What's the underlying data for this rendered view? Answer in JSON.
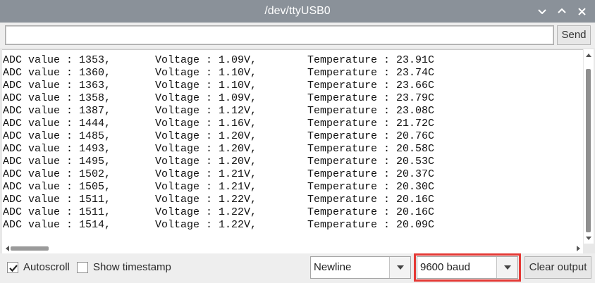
{
  "window": {
    "title": "/dev/ttyUSB0"
  },
  "send_bar": {
    "input_value": "",
    "send_label": "Send"
  },
  "output": {
    "lines": [
      [
        "ADC value : 1353,",
        "Voltage : 1.09V,",
        "Temperature : 23.91C"
      ],
      [
        "ADC value : 1360,",
        "Voltage : 1.10V,",
        "Temperature : 23.74C"
      ],
      [
        "ADC value : 1363,",
        "Voltage : 1.10V,",
        "Temperature : 23.66C"
      ],
      [
        "ADC value : 1358,",
        "Voltage : 1.09V,",
        "Temperature : 23.79C"
      ],
      [
        "ADC value : 1387,",
        "Voltage : 1.12V,",
        "Temperature : 23.08C"
      ],
      [
        "ADC value : 1444,",
        "Voltage : 1.16V,",
        "Temperature : 21.72C"
      ],
      [
        "ADC value : 1485,",
        "Voltage : 1.20V,",
        "Temperature : 20.76C"
      ],
      [
        "ADC value : 1493,",
        "Voltage : 1.20V,",
        "Temperature : 20.58C"
      ],
      [
        "ADC value : 1495,",
        "Voltage : 1.20V,",
        "Temperature : 20.53C"
      ],
      [
        "ADC value : 1502,",
        "Voltage : 1.21V,",
        "Temperature : 20.37C"
      ],
      [
        "ADC value : 1505,",
        "Voltage : 1.21V,",
        "Temperature : 20.30C"
      ],
      [
        "ADC value : 1511,",
        "Voltage : 1.22V,",
        "Temperature : 20.16C"
      ],
      [
        "ADC value : 1511,",
        "Voltage : 1.22V,",
        "Temperature : 20.16C"
      ],
      [
        "ADC value : 1514,",
        "Voltage : 1.22V,",
        "Temperature : 20.09C"
      ]
    ]
  },
  "bottom_bar": {
    "autoscroll_label": "Autoscroll",
    "autoscroll_checked": true,
    "timestamp_label": "Show timestamp",
    "timestamp_checked": false,
    "line_ending_value": "Newline",
    "baud_value": "9600 baud",
    "clear_label": "Clear output"
  },
  "colors": {
    "titlebar": "#8a9199",
    "highlight": "#e53935"
  }
}
